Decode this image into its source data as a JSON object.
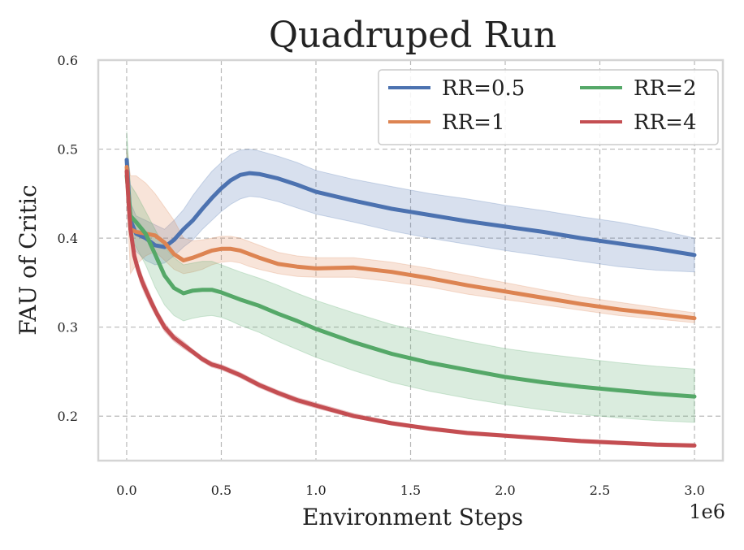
{
  "chart_data": {
    "type": "line",
    "title": "Quadruped Run",
    "xlabel": "Environment Steps",
    "ylabel": "FAU of Critic",
    "x_multiplier_label": "1e6",
    "xlim": [
      -0.15,
      3.15
    ],
    "ylim": [
      0.15,
      0.6
    ],
    "xticks": [
      0.0,
      0.5,
      1.0,
      1.5,
      2.0,
      2.5,
      3.0
    ],
    "xtick_labels": [
      "0.0",
      "0.5",
      "1.0",
      "1.5",
      "2.0",
      "2.5",
      "3.0"
    ],
    "yticks": [
      0.2,
      0.3,
      0.4,
      0.5,
      0.6
    ],
    "ytick_labels": [
      "0.2",
      "0.3",
      "0.4",
      "0.5",
      "0.6"
    ],
    "grid": true,
    "legend": {
      "placement": "top-right",
      "columns": 2
    },
    "series": [
      {
        "name": "RR=0.5",
        "color": "#4c72b0",
        "x": [
          0.0,
          0.02,
          0.05,
          0.1,
          0.15,
          0.2,
          0.25,
          0.3,
          0.35,
          0.4,
          0.45,
          0.5,
          0.55,
          0.6,
          0.65,
          0.7,
          0.8,
          0.9,
          1.0,
          1.2,
          1.4,
          1.6,
          1.8,
          2.0,
          2.2,
          2.4,
          2.6,
          2.8,
          3.0
        ],
        "mean": [
          0.488,
          0.42,
          0.405,
          0.4,
          0.392,
          0.39,
          0.398,
          0.41,
          0.42,
          0.433,
          0.445,
          0.456,
          0.465,
          0.471,
          0.473,
          0.472,
          0.467,
          0.46,
          0.452,
          0.442,
          0.433,
          0.426,
          0.419,
          0.413,
          0.407,
          0.4,
          0.394,
          0.388,
          0.381
        ],
        "lower": [
          0.47,
          0.4,
          0.385,
          0.375,
          0.37,
          0.372,
          0.38,
          0.39,
          0.398,
          0.41,
          0.42,
          0.43,
          0.438,
          0.444,
          0.447,
          0.446,
          0.441,
          0.434,
          0.427,
          0.418,
          0.408,
          0.4,
          0.393,
          0.386,
          0.38,
          0.374,
          0.368,
          0.364,
          0.362
        ],
        "upper": [
          0.5,
          0.44,
          0.425,
          0.42,
          0.415,
          0.41,
          0.42,
          0.432,
          0.448,
          0.462,
          0.475,
          0.485,
          0.494,
          0.499,
          0.5,
          0.498,
          0.492,
          0.485,
          0.476,
          0.466,
          0.458,
          0.45,
          0.444,
          0.437,
          0.431,
          0.424,
          0.418,
          0.41,
          0.4
        ]
      },
      {
        "name": "RR=1",
        "color": "#dd8452",
        "x": [
          0.0,
          0.02,
          0.05,
          0.1,
          0.15,
          0.2,
          0.25,
          0.3,
          0.35,
          0.4,
          0.45,
          0.5,
          0.55,
          0.6,
          0.65,
          0.7,
          0.8,
          0.9,
          1.0,
          1.2,
          1.4,
          1.6,
          1.8,
          2.0,
          2.2,
          2.4,
          2.6,
          2.8,
          3.0
        ],
        "mean": [
          0.48,
          0.41,
          0.407,
          0.405,
          0.403,
          0.395,
          0.382,
          0.375,
          0.378,
          0.382,
          0.386,
          0.388,
          0.388,
          0.386,
          0.382,
          0.378,
          0.371,
          0.368,
          0.366,
          0.367,
          0.362,
          0.355,
          0.347,
          0.34,
          0.333,
          0.326,
          0.32,
          0.315,
          0.31
        ],
        "lower": [
          0.45,
          0.36,
          0.37,
          0.38,
          0.385,
          0.375,
          0.365,
          0.36,
          0.362,
          0.365,
          0.37,
          0.373,
          0.374,
          0.372,
          0.368,
          0.365,
          0.36,
          0.357,
          0.356,
          0.356,
          0.351,
          0.345,
          0.337,
          0.331,
          0.325,
          0.319,
          0.313,
          0.309,
          0.305
        ],
        "upper": [
          0.5,
          0.47,
          0.47,
          0.462,
          0.45,
          0.435,
          0.42,
          0.4,
          0.397,
          0.398,
          0.4,
          0.402,
          0.402,
          0.4,
          0.396,
          0.392,
          0.384,
          0.38,
          0.378,
          0.378,
          0.373,
          0.366,
          0.358,
          0.35,
          0.342,
          0.334,
          0.328,
          0.322,
          0.316
        ]
      },
      {
        "name": "RR=2",
        "color": "#55a868",
        "x": [
          0.0,
          0.02,
          0.05,
          0.1,
          0.15,
          0.2,
          0.25,
          0.3,
          0.35,
          0.4,
          0.45,
          0.5,
          0.55,
          0.6,
          0.7,
          0.8,
          0.9,
          1.0,
          1.2,
          1.4,
          1.6,
          1.8,
          2.0,
          2.2,
          2.4,
          2.6,
          2.8,
          3.0
        ],
        "mean": [
          0.47,
          0.425,
          0.418,
          0.405,
          0.382,
          0.358,
          0.344,
          0.338,
          0.341,
          0.342,
          0.342,
          0.339,
          0.335,
          0.331,
          0.324,
          0.315,
          0.307,
          0.298,
          0.283,
          0.27,
          0.26,
          0.252,
          0.244,
          0.238,
          0.233,
          0.229,
          0.225,
          0.222
        ],
        "lower": [
          0.44,
          0.4,
          0.39,
          0.37,
          0.345,
          0.325,
          0.313,
          0.307,
          0.31,
          0.312,
          0.313,
          0.311,
          0.307,
          0.302,
          0.294,
          0.284,
          0.275,
          0.266,
          0.251,
          0.238,
          0.228,
          0.22,
          0.213,
          0.207,
          0.202,
          0.198,
          0.195,
          0.193
        ],
        "upper": [
          0.52,
          0.46,
          0.45,
          0.43,
          0.41,
          0.39,
          0.378,
          0.37,
          0.372,
          0.374,
          0.374,
          0.37,
          0.366,
          0.362,
          0.355,
          0.347,
          0.338,
          0.33,
          0.316,
          0.303,
          0.293,
          0.284,
          0.276,
          0.27,
          0.265,
          0.26,
          0.256,
          0.253
        ]
      },
      {
        "name": "RR=4",
        "color": "#c44e52",
        "x": [
          0.0,
          0.01,
          0.02,
          0.04,
          0.06,
          0.08,
          0.1,
          0.13,
          0.16,
          0.2,
          0.25,
          0.3,
          0.35,
          0.4,
          0.45,
          0.5,
          0.6,
          0.7,
          0.8,
          0.9,
          1.0,
          1.2,
          1.4,
          1.6,
          1.8,
          2.0,
          2.2,
          2.4,
          2.6,
          2.8,
          3.0
        ],
        "mean": [
          0.475,
          0.44,
          0.41,
          0.38,
          0.365,
          0.352,
          0.342,
          0.328,
          0.315,
          0.3,
          0.288,
          0.28,
          0.272,
          0.264,
          0.258,
          0.255,
          0.246,
          0.235,
          0.226,
          0.218,
          0.212,
          0.2,
          0.192,
          0.186,
          0.181,
          0.178,
          0.175,
          0.172,
          0.17,
          0.168,
          0.167
        ],
        "lower": [
          0.46,
          0.43,
          0.4,
          0.372,
          0.358,
          0.345,
          0.335,
          0.322,
          0.31,
          0.295,
          0.284,
          0.276,
          0.269,
          0.261,
          0.255,
          0.252,
          0.243,
          0.232,
          0.223,
          0.215,
          0.209,
          0.198,
          0.19,
          0.184,
          0.179,
          0.176,
          0.173,
          0.17,
          0.168,
          0.166,
          0.165
        ],
        "upper": [
          0.49,
          0.45,
          0.42,
          0.388,
          0.372,
          0.359,
          0.349,
          0.334,
          0.32,
          0.305,
          0.292,
          0.284,
          0.275,
          0.267,
          0.261,
          0.258,
          0.249,
          0.238,
          0.229,
          0.221,
          0.215,
          0.203,
          0.194,
          0.188,
          0.183,
          0.18,
          0.177,
          0.174,
          0.172,
          0.17,
          0.169
        ]
      }
    ]
  }
}
